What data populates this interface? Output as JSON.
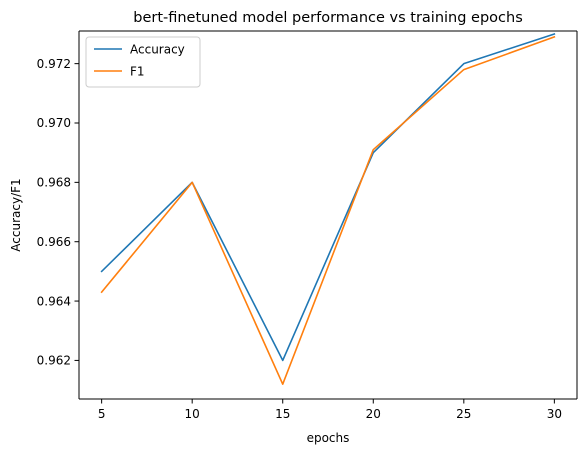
{
  "chart_data": {
    "type": "line",
    "title": "bert-finetuned model performance vs training epochs",
    "xlabel": "epochs",
    "ylabel": "Accuracy/F1",
    "x": [
      5,
      10,
      15,
      20,
      25,
      30
    ],
    "xticks": [
      5,
      10,
      15,
      20,
      25,
      30
    ],
    "yticks": [
      0.962,
      0.964,
      0.966,
      0.968,
      0.97,
      0.972
    ],
    "xlim": [
      3.75,
      31.25
    ],
    "ylim": [
      0.9607,
      0.9731
    ],
    "grid": false,
    "legend_position": "top-left",
    "series": [
      {
        "name": "Accuracy",
        "color": "#1f77b4",
        "values": [
          0.965,
          0.968,
          0.962,
          0.969,
          0.972,
          0.973
        ]
      },
      {
        "name": "F1",
        "color": "#ff7f0e",
        "values": [
          0.9643,
          0.968,
          0.9612,
          0.9691,
          0.9718,
          0.9729
        ]
      }
    ]
  }
}
